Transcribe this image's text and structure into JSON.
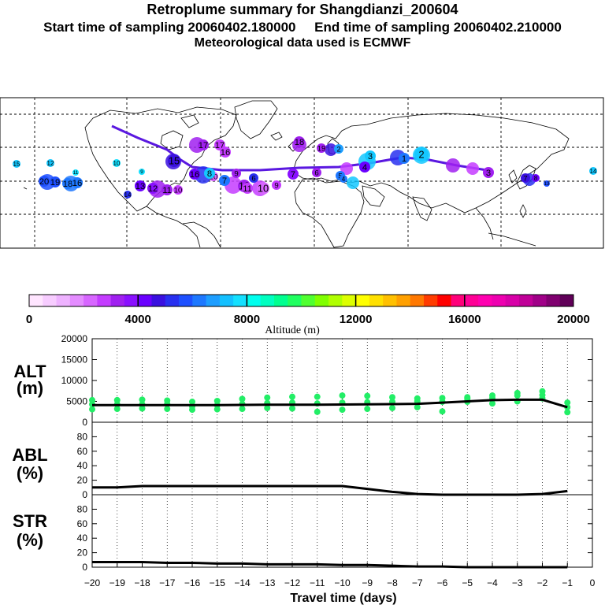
{
  "header": {
    "title": "Retroplume summary for Shangdianzi_200604",
    "sampling": "Start time of sampling 20060402.180000     End time of sampling 20060402.210000",
    "met": "Meteorological data used is ECMWF"
  },
  "colorbar": {
    "label": "Altitude (m)",
    "ticks": [
      "0",
      "4000",
      "8000",
      "12000",
      "16000",
      "20000"
    ],
    "colors": [
      "#ffe5ff",
      "#f7ccff",
      "#eeb2ff",
      "#e48cff",
      "#d766ff",
      "#c43cff",
      "#a020f0",
      "#8a10ff",
      "#6a00ff",
      "#3a10e0",
      "#2830f0",
      "#1e50ff",
      "#1e78ff",
      "#1e9eff",
      "#14c0ff",
      "#14e0ff",
      "#00ffee",
      "#00ffc0",
      "#00ff90",
      "#20ff60",
      "#50ff30",
      "#80ff00",
      "#b0ff00",
      "#ddff00",
      "#ffff00",
      "#ffe000",
      "#ffc000",
      "#ffa000",
      "#ff7800",
      "#ff3c00",
      "#ff0000",
      "#ff007a",
      "#ff0096",
      "#ff00b0",
      "#ee00b0",
      "#d800a8",
      "#c00098",
      "#a00088",
      "#800070",
      "#600058"
    ]
  },
  "map_labels": [
    {
      "text": "15",
      "c": "#14c8ff"
    },
    {
      "text": "12",
      "c": "#14c8ff"
    },
    {
      "text": "11",
      "c": "#14e0ff"
    },
    {
      "text": "10",
      "c": "#14e0ff"
    },
    {
      "text": "9",
      "c": "#14e0ff"
    },
    {
      "text": "20",
      "c": "#1e50ff"
    },
    {
      "text": "19",
      "c": "#1e50ff"
    },
    {
      "text": "18",
      "c": "#1e78ff"
    },
    {
      "text": "16",
      "c": "#1e78ff"
    },
    {
      "text": "14",
      "c": "#2830f0"
    },
    {
      "text": "13",
      "c": "#6a00ff"
    },
    {
      "text": "12",
      "c": "#8a10ff"
    },
    {
      "text": "11",
      "c": "#a020f0"
    },
    {
      "text": "10",
      "c": "#c43cff"
    },
    {
      "text": "17",
      "c": "#a020f0"
    },
    {
      "text": "15",
      "c": "#3a10e0"
    },
    {
      "text": "17",
      "c": "#c43cff"
    },
    {
      "text": "16",
      "c": "#c43cff"
    },
    {
      "text": "20",
      "c": "#d766ff"
    },
    {
      "text": "16",
      "c": "#6a00ff"
    },
    {
      "text": "13",
      "c": "#a020f0"
    },
    {
      "text": "8",
      "c": "#14c8ff"
    },
    {
      "text": "7",
      "c": "#1e78ff"
    },
    {
      "text": "9",
      "c": "#a020f0"
    },
    {
      "text": "6",
      "c": "#2830f0"
    },
    {
      "text": "11",
      "c": "#c43cff"
    },
    {
      "text": "10",
      "c": "#d766ff"
    },
    {
      "text": "9",
      "c": "#c43cff"
    },
    {
      "text": "7",
      "c": "#8a10ff"
    },
    {
      "text": "6",
      "c": "#a020f0"
    },
    {
      "text": "5",
      "c": "#1e78ff"
    },
    {
      "text": "4",
      "c": "#6a00ff"
    },
    {
      "text": "3",
      "c": "#14c8ff"
    },
    {
      "text": "2",
      "c": "#14c8ff"
    },
    {
      "text": "1",
      "c": "#1e78ff"
    },
    {
      "text": "3",
      "c": "#a020f0"
    },
    {
      "text": "18",
      "c": "#a020f0"
    },
    {
      "text": "19",
      "c": "#a020f0"
    },
    {
      "text": "7",
      "c": "#3a10e0"
    },
    {
      "text": "8",
      "c": "#6a00ff"
    },
    {
      "text": "2",
      "c": "#1e9eff"
    },
    {
      "text": "4",
      "c": "#1e78ff"
    },
    {
      "text": "14",
      "c": "#14c8ff"
    },
    {
      "text": "13",
      "c": "#1e50ff"
    }
  ],
  "chart_data": [
    {
      "type": "line",
      "title": "ALT (m)",
      "xlabel": "Travel time (days)",
      "x": [
        -20,
        -19,
        -18,
        -17,
        -16,
        -15,
        -14,
        -13,
        -12,
        -11,
        -10,
        -9,
        -8,
        -7,
        -6,
        -5,
        -4,
        -3,
        -2,
        -1
      ],
      "xlim": [
        -20,
        0
      ],
      "ylim": [
        0,
        20000
      ],
      "yticks": [
        "0",
        "5000",
        "10000",
        "15000",
        "20000"
      ],
      "series": [
        {
          "name": "mean altitude",
          "values": [
            4100,
            4100,
            4100,
            4100,
            4100,
            4100,
            4150,
            4200,
            4200,
            4200,
            4250,
            4300,
            4350,
            4400,
            4700,
            5000,
            5300,
            5400,
            5400,
            3600
          ]
        },
        {
          "name": "particle altitudes",
          "values": [
            [
              3100,
              4300,
              5300
            ],
            [
              3200,
              4300,
              5300
            ],
            [
              3300,
              4300,
              5400
            ],
            [
              3200,
              4400,
              5200
            ],
            [
              3000,
              3800,
              4900
            ],
            [
              3100,
              4100,
              5100
            ],
            [
              3200,
              4400,
              5600
            ],
            [
              3400,
              4600,
              5900
            ],
            [
              3300,
              4700,
              6100
            ],
            [
              2500,
              4500,
              6100
            ],
            [
              3000,
              4700,
              6400
            ],
            [
              3200,
              4800,
              6300
            ],
            [
              3400,
              4900,
              6000
            ],
            [
              3600,
              5000,
              5700
            ],
            [
              2600,
              4900,
              5800
            ],
            [
              4900,
              5600,
              6000
            ],
            [
              4500,
              5800,
              6400
            ],
            [
              5000,
              6400,
              7000
            ],
            [
              5700,
              6500,
              7400
            ],
            [
              2400,
              3600,
              4700
            ]
          ]
        }
      ]
    },
    {
      "type": "line",
      "title": "ABL (%)",
      "xlabel": "Travel time (days)",
      "x": [
        -20,
        -19,
        -18,
        -17,
        -16,
        -15,
        -14,
        -13,
        -12,
        -11,
        -10,
        -9,
        -8,
        -7,
        -6,
        -5,
        -4,
        -3,
        -2,
        -1
      ],
      "xlim": [
        -20,
        0
      ],
      "ylim": [
        0,
        100
      ],
      "yticks": [
        "0",
        "20",
        "40",
        "60",
        "80"
      ],
      "series": [
        {
          "name": "ABL fraction",
          "values": [
            10,
            10,
            12,
            12,
            12,
            12,
            12,
            12,
            12,
            12,
            12,
            8,
            4,
            1,
            0,
            0,
            0,
            0,
            1,
            5
          ]
        }
      ]
    },
    {
      "type": "line",
      "title": "STR (%)",
      "xlabel": "Travel time (days)",
      "x": [
        -20,
        -19,
        -18,
        -17,
        -16,
        -15,
        -14,
        -13,
        -12,
        -11,
        -10,
        -9,
        -8,
        -7,
        -6,
        -5,
        -4,
        -3,
        -2,
        -1
      ],
      "xlim": [
        -20,
        0
      ],
      "ylim": [
        0,
        100
      ],
      "yticks": [
        "0",
        "20",
        "40",
        "60",
        "80"
      ],
      "series": [
        {
          "name": "stratospheric fraction",
          "values": [
            7,
            7,
            7,
            6,
            6,
            5,
            5,
            4,
            4,
            4,
            3,
            3,
            2,
            1,
            1,
            0,
            0,
            0,
            0,
            0
          ]
        }
      ]
    }
  ],
  "panels": {
    "alt": {
      "label1": "ALT",
      "label2": "(m)"
    },
    "abl": {
      "label1": "ABL",
      "label2": "(%)"
    },
    "str": {
      "label1": "STR",
      "label2": "(%)"
    }
  },
  "xticks": [
    "−20",
    "−19",
    "−18",
    "−17",
    "−16",
    "−15",
    "−14",
    "−13",
    "−12",
    "−11",
    "−10",
    "−9",
    "−8",
    "−7",
    "−6",
    "−5",
    "−4",
    "−3",
    "−2",
    "−1",
    "0"
  ],
  "xlabel": "Travel time (days)",
  "colors": {
    "plume_line": "#5a18e0",
    "line": "#000000",
    "dots": "#22ee66"
  }
}
